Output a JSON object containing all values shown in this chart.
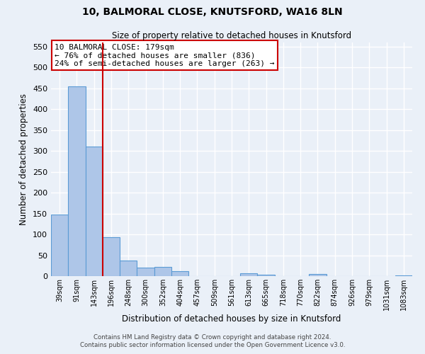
{
  "title": "10, BALMORAL CLOSE, KNUTSFORD, WA16 8LN",
  "subtitle": "Size of property relative to detached houses in Knutsford",
  "xlabel": "Distribution of detached houses by size in Knutsford",
  "ylabel": "Number of detached properties",
  "bar_labels": [
    "39sqm",
    "91sqm",
    "143sqm",
    "196sqm",
    "248sqm",
    "300sqm",
    "352sqm",
    "404sqm",
    "457sqm",
    "509sqm",
    "561sqm",
    "613sqm",
    "665sqm",
    "718sqm",
    "770sqm",
    "822sqm",
    "874sqm",
    "926sqm",
    "979sqm",
    "1031sqm",
    "1083sqm"
  ],
  "bar_values": [
    147,
    454,
    311,
    93,
    37,
    20,
    22,
    12,
    0,
    0,
    0,
    6,
    4,
    0,
    0,
    5,
    0,
    0,
    0,
    0,
    2
  ],
  "bar_color": "#aec6e8",
  "bar_edge_color": "#5b9bd5",
  "vline_color": "#cc0000",
  "ylim": [
    0,
    560
  ],
  "yticks": [
    0,
    50,
    100,
    150,
    200,
    250,
    300,
    350,
    400,
    450,
    500,
    550
  ],
  "annotation_title": "10 BALMORAL CLOSE: 179sqm",
  "annotation_line1": "← 76% of detached houses are smaller (836)",
  "annotation_line2": "24% of semi-detached houses are larger (263) →",
  "annotation_box_color": "#ffffff",
  "annotation_box_edge": "#cc0000",
  "bg_color": "#eaf0f8",
  "grid_color": "#ffffff",
  "footer_line1": "Contains HM Land Registry data © Crown copyright and database right 2024.",
  "footer_line2": "Contains public sector information licensed under the Open Government Licence v3.0."
}
